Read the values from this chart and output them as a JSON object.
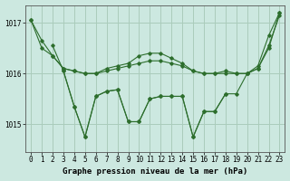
{
  "background_color": "#cce8e0",
  "grid_color": "#aaccbb",
  "line_color": "#2d6e2d",
  "title": "Graphe pression niveau de la mer (hPa)",
  "x_ticks": [
    0,
    1,
    2,
    3,
    4,
    5,
    6,
    7,
    8,
    9,
    10,
    11,
    12,
    13,
    14,
    15,
    16,
    17,
    18,
    19,
    20,
    21,
    22,
    23
  ],
  "y_ticks": [
    1015,
    1016,
    1017
  ],
  "ylim": [
    1014.45,
    1017.35
  ],
  "xlim": [
    -0.5,
    23.5
  ],
  "series": [
    {
      "x": [
        0,
        1,
        2,
        3,
        4,
        5,
        6,
        7,
        8,
        9,
        10,
        11,
        12,
        13,
        14,
        15,
        16,
        17,
        18,
        19,
        20,
        21,
        22,
        23
      ],
      "y": [
        1017.05,
        1016.65,
        1016.35,
        1016.1,
        1016.05,
        1016.0,
        1016.0,
        1016.05,
        1016.1,
        1016.15,
        1016.2,
        1016.25,
        1016.25,
        1016.2,
        1016.15,
        1016.05,
        1016.0,
        1016.0,
        1016.05,
        1016.0,
        1016.0,
        1016.1,
        1016.55,
        1017.15
      ]
    },
    {
      "x": [
        0,
        1,
        2,
        3,
        4,
        5,
        6,
        7,
        8,
        9,
        10,
        11,
        12,
        13,
        14,
        15,
        16,
        17,
        18,
        19,
        20,
        21,
        22,
        23
      ],
      "y": [
        1017.05,
        1016.5,
        1016.35,
        1016.1,
        1016.05,
        1016.0,
        1016.0,
        1016.1,
        1016.15,
        1016.2,
        1016.35,
        1016.4,
        1016.4,
        1016.3,
        1016.2,
        1016.05,
        1016.0,
        1016.0,
        1016.0,
        1016.0,
        1016.0,
        1016.1,
        1016.5,
        1017.2
      ]
    },
    {
      "x": [
        2,
        3,
        4,
        5,
        6,
        7,
        8,
        9,
        10,
        11,
        12,
        13,
        14,
        15,
        16,
        17,
        18
      ],
      "y": [
        1016.55,
        1016.05,
        1015.35,
        1014.75,
        1015.55,
        1015.65,
        1015.68,
        1015.05,
        1015.05,
        1015.5,
        1015.55,
        1015.55,
        1015.55,
        1014.75,
        1015.25,
        1015.25,
        1015.6
      ]
    },
    {
      "x": [
        3,
        4,
        5,
        6,
        7,
        8,
        9,
        10,
        11,
        12,
        13,
        14,
        15,
        16,
        17,
        18,
        19,
        20,
        21,
        22,
        23
      ],
      "y": [
        1016.05,
        1015.35,
        1014.75,
        1015.55,
        1015.65,
        1015.68,
        1015.05,
        1015.05,
        1015.5,
        1015.55,
        1015.55,
        1015.55,
        1014.75,
        1015.25,
        1015.25,
        1015.6,
        1015.6,
        1016.0,
        1016.15,
        1016.75,
        1017.2
      ]
    }
  ]
}
